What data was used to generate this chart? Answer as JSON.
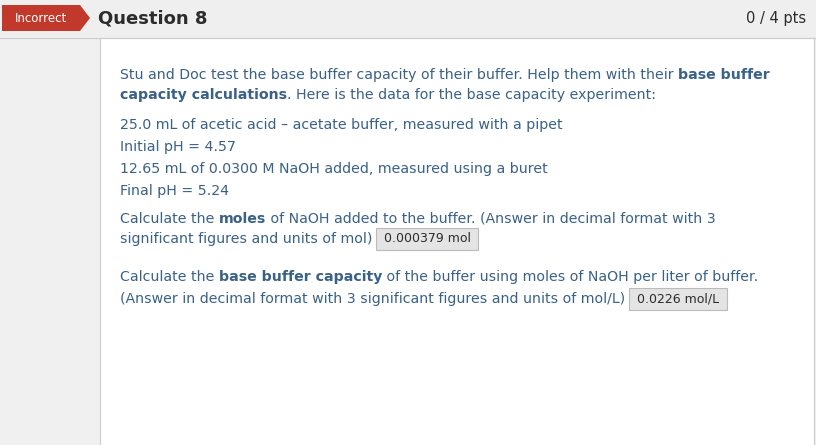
{
  "bg_color": "#f0f0f0",
  "content_bg": "#ffffff",
  "header_bg": "#efefef",
  "incorrect_bg": "#c0392b",
  "incorrect_text": "Incorrect",
  "question_label": "Question 8",
  "score": "0 / 4 pts",
  "text_color": "#2c2c2c",
  "blue_text_color": "#3a6186",
  "header_border": "#cccccc",
  "answer_box_bg": "#e4e4e4",
  "answer_box_border": "#bbbbbb",
  "answer1": "0.000379 mol",
  "answer2": "0.0226 mol/L",
  "figw": 8.16,
  "figh": 4.45,
  "dpi": 100
}
